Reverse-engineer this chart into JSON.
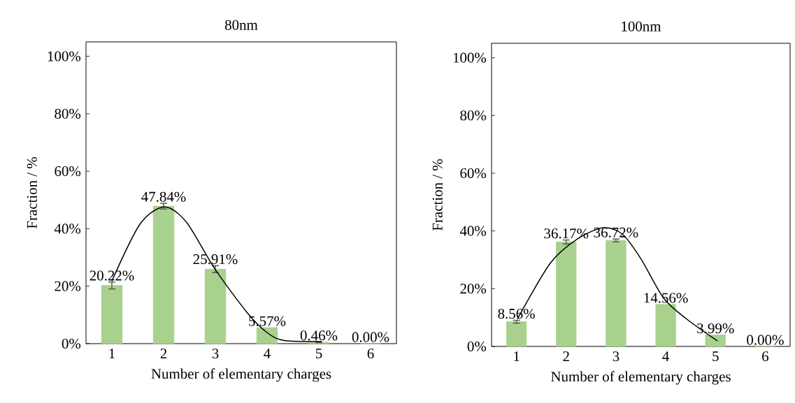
{
  "chart_data": [
    {
      "type": "bar",
      "title": "80nm",
      "xlabel": "Number of elementary charges",
      "ylabel": "Fraction / %",
      "x": [
        1,
        2,
        3,
        4,
        5,
        6
      ],
      "xlim": [
        0.5,
        6.5
      ],
      "xticks": [
        1,
        2,
        3,
        4,
        5,
        6
      ],
      "ylim": [
        0,
        105
      ],
      "yticks": [
        {
          "value": 0,
          "label": "0%"
        },
        {
          "value": 20,
          "label": "20%"
        },
        {
          "value": 40,
          "label": "40%"
        },
        {
          "value": 60,
          "label": "60%"
        },
        {
          "value": 80,
          "label": "80%"
        },
        {
          "value": 100,
          "label": "100%"
        }
      ],
      "series": [
        {
          "color": "#a9d18e",
          "values": [
            20.22,
            47.84,
            25.91,
            5.57,
            0.46,
            0.0
          ],
          "errors": [
            1.2,
            1.0,
            1.2,
            null,
            0.1,
            null
          ],
          "value_labels": [
            "20.22%",
            "47.84%",
            "25.91%",
            "5.57%",
            "0.46%",
            "0.00%"
          ]
        },
        {
          "type": "line",
          "color": "#000000",
          "x": [
            1.0,
            1.54,
            2.01,
            2.44,
            2.98,
            3.61,
            4.01,
            4.33,
            5.05
          ],
          "values": [
            21.8,
            41.5,
            47.6,
            42.3,
            26.3,
            10.9,
            3.7,
            1.1,
            0.7
          ]
        }
      ]
    },
    {
      "type": "bar",
      "title": "100nm",
      "xlabel": "Number of elementary charges",
      "ylabel": "Fraction / %",
      "x": [
        1,
        2,
        3,
        4,
        5,
        6
      ],
      "xlim": [
        0.5,
        6.5
      ],
      "xticks": [
        1,
        2,
        3,
        4,
        5,
        6
      ],
      "ylim": [
        0,
        105
      ],
      "yticks": [
        {
          "value": 0,
          "label": "0%"
        },
        {
          "value": 20,
          "label": "20%"
        },
        {
          "value": 40,
          "label": "40%"
        },
        {
          "value": 60,
          "label": "60%"
        },
        {
          "value": 80,
          "label": "80%"
        },
        {
          "value": 100,
          "label": "100%"
        }
      ],
      "series": [
        {
          "color": "#a9d18e",
          "values": [
            8.56,
            36.17,
            36.72,
            14.56,
            3.99,
            0.0
          ],
          "errors": [
            0.5,
            0.7,
            0.5,
            null,
            null,
            null
          ],
          "value_labels": [
            "8.56%",
            "36.17%",
            "36.72%",
            "14.56%",
            "3.99%",
            "0.00%"
          ]
        },
        {
          "type": "line",
          "color": "#000000",
          "x": [
            1.02,
            1.68,
            2.23,
            2.75,
            3.13,
            3.5,
            3.96,
            4.42,
            5.04
          ],
          "values": [
            9.5,
            28.8,
            37.3,
            41.1,
            38.9,
            30.4,
            16.7,
            9.5,
            1.9
          ]
        }
      ]
    }
  ]
}
